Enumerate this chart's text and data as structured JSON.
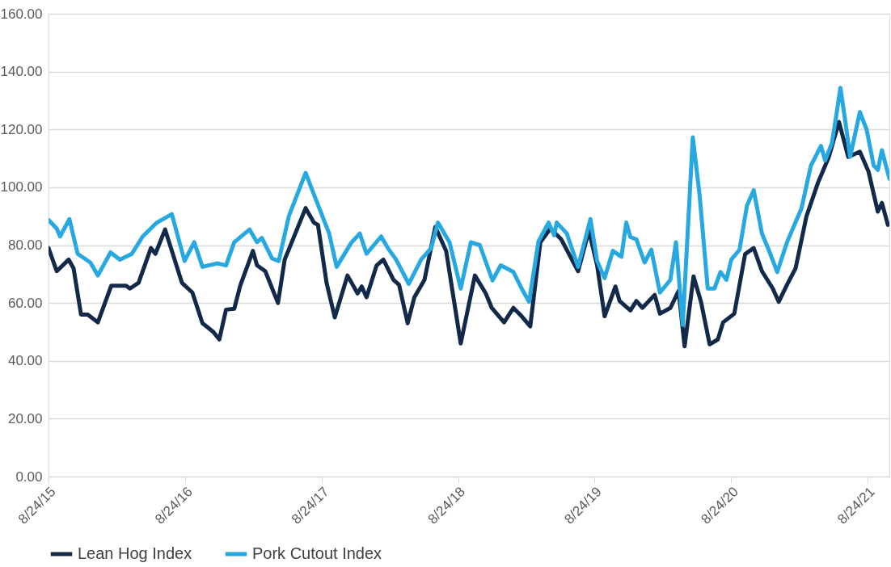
{
  "chart_data": {
    "type": "line",
    "xlim": [
      "2015-08-24",
      "2021-10-21"
    ],
    "ylim": [
      0,
      160
    ],
    "xticks": [
      {
        "value": "2015-08-24",
        "label": "8/24/15"
      },
      {
        "value": "2016-08-24",
        "label": "8/24/16"
      },
      {
        "value": "2017-08-24",
        "label": "8/24/17"
      },
      {
        "value": "2018-08-24",
        "label": "8/24/18"
      },
      {
        "value": "2019-08-24",
        "label": "8/24/19"
      },
      {
        "value": "2020-08-24",
        "label": "8/24/20"
      },
      {
        "value": "2021-08-24",
        "label": "8/24/21"
      }
    ],
    "yticks": [
      {
        "value": 0,
        "label": "0.00"
      },
      {
        "value": 20,
        "label": "20.00"
      },
      {
        "value": 40,
        "label": "40.00"
      },
      {
        "value": 60,
        "label": "60.00"
      },
      {
        "value": 80,
        "label": "80.00"
      },
      {
        "value": 100,
        "label": "100.00"
      },
      {
        "value": 120,
        "label": "120.00"
      },
      {
        "value": 140,
        "label": "140.00"
      },
      {
        "value": 160,
        "label": "160.00"
      }
    ],
    "grid": "y",
    "legend": "bottom",
    "marker": "none",
    "line_style": "solid",
    "series": [
      {
        "name": "Lean Hog Index",
        "color": "#12294a",
        "x": [
          "2015-08-24",
          "2015-09-15",
          "2015-10-17",
          "2015-10-30",
          "2015-11-19",
          "2015-12-07",
          "2016-01-03",
          "2016-02-08",
          "2016-03-18",
          "2016-03-29",
          "2016-04-21",
          "2016-05-24",
          "2016-06-05",
          "2016-07-01",
          "2016-08-15",
          "2016-09-12",
          "2016-10-09",
          "2016-11-07",
          "2016-11-23",
          "2016-12-11",
          "2017-01-02",
          "2017-01-18",
          "2017-02-21",
          "2017-03-04",
          "2017-03-26",
          "2017-04-29",
          "2017-05-17",
          "2017-07-12",
          "2017-08-03",
          "2017-08-14",
          "2017-09-06",
          "2017-09-28",
          "2017-11-01",
          "2017-11-28",
          "2017-12-09",
          "2017-12-22",
          "2018-01-18",
          "2018-02-05",
          "2018-03-04",
          "2018-03-19",
          "2018-04-11",
          "2018-04-29",
          "2018-05-26",
          "2018-06-24",
          "2018-07-23",
          "2018-08-31",
          "2018-10-08",
          "2018-11-06",
          "2018-11-22",
          "2018-12-25",
          "2019-01-19",
          "2019-02-10",
          "2019-03-05",
          "2019-04-01",
          "2019-04-28",
          "2019-05-27",
          "2019-07-11",
          "2019-08-09",
          "2019-08-31",
          "2019-09-20",
          "2019-10-19",
          "2019-10-30",
          "2019-11-28",
          "2019-12-14",
          "2019-12-30",
          "2020-02-01",
          "2020-02-15",
          "2020-03-14",
          "2020-04-05",
          "2020-04-21",
          "2020-05-15",
          "2020-06-04",
          "2020-06-27",
          "2020-07-19",
          "2020-08-02",
          "2020-09-01",
          "2020-09-30",
          "2020-10-23",
          "2020-11-14",
          "2020-12-13",
          "2020-12-29",
          "2021-01-20",
          "2021-02-12",
          "2021-03-13",
          "2021-04-13",
          "2021-05-12",
          "2021-06-08",
          "2021-07-03",
          "2021-08-03",
          "2021-08-26",
          "2021-09-20",
          "2021-10-01",
          "2021-10-17"
        ],
        "values": [
          79,
          71,
          75,
          72,
          56,
          56,
          53.3,
          66,
          66,
          65,
          67,
          79,
          77,
          85.4,
          67,
          63.6,
          53,
          50,
          47.4,
          57.7,
          58,
          66,
          78,
          73,
          71,
          60,
          75,
          92.8,
          87.8,
          87,
          67,
          55,
          69.5,
          63.3,
          65.7,
          62,
          73,
          75,
          68,
          66.3,
          53,
          62,
          68,
          86.3,
          78,
          46,
          69.5,
          63.3,
          58.3,
          53.3,
          58.3,
          55.4,
          51.9,
          81,
          85.7,
          82,
          71,
          85,
          73,
          55.4,
          65.7,
          60.7,
          57.4,
          60.7,
          58.3,
          62.8,
          56.3,
          58.3,
          64.2,
          45,
          69.2,
          60.4,
          45.7,
          47.4,
          53.3,
          56.3,
          76.9,
          79,
          71,
          65,
          60.4,
          66.3,
          72,
          89.9,
          101.6,
          110.5,
          122.6,
          110.5,
          112.3,
          105.5,
          91.6,
          94.6,
          87
        ]
      },
      {
        "name": "Pork Cutout Index",
        "color": "#27a8e0",
        "x": [
          "2015-08-24",
          "2015-09-15",
          "2015-09-24",
          "2015-10-19",
          "2015-11-10",
          "2015-12-14",
          "2016-01-03",
          "2016-02-06",
          "2016-03-02",
          "2016-04-03",
          "2016-05-02",
          "2016-06-09",
          "2016-07-19",
          "2016-08-22",
          "2016-09-17",
          "2016-10-09",
          "2016-11-19",
          "2016-12-11",
          "2017-01-02",
          "2017-02-12",
          "2017-03-04",
          "2017-03-17",
          "2017-04-13",
          "2017-05-01",
          "2017-05-28",
          "2017-07-12",
          "2017-08-06",
          "2017-09-13",
          "2017-10-03",
          "2017-11-12",
          "2017-12-04",
          "2017-12-22",
          "2018-01-30",
          "2018-02-17",
          "2018-03-11",
          "2018-04-14",
          "2018-05-17",
          "2018-06-13",
          "2018-07-01",
          "2018-08-01",
          "2018-08-31",
          "2018-09-27",
          "2018-10-21",
          "2018-11-24",
          "2018-12-16",
          "2019-01-19",
          "2019-02-10",
          "2019-03-02",
          "2019-03-27",
          "2019-04-23",
          "2019-05-08",
          "2019-05-15",
          "2019-06-11",
          "2019-07-11",
          "2019-08-13",
          "2019-08-31",
          "2019-09-20",
          "2019-10-12",
          "2019-11-04",
          "2019-11-17",
          "2019-11-28",
          "2019-12-14",
          "2020-01-05",
          "2020-01-23",
          "2020-02-15",
          "2020-03-14",
          "2020-03-29",
          "2020-04-16",
          "2020-05-13",
          "2020-05-31",
          "2020-06-22",
          "2020-07-10",
          "2020-07-26",
          "2020-08-11",
          "2020-08-24",
          "2020-09-15",
          "2020-10-05",
          "2020-10-23",
          "2020-11-14",
          "2020-12-02",
          "2020-12-25",
          "2021-01-20",
          "2021-02-28",
          "2021-03-25",
          "2021-04-21",
          "2021-05-02",
          "2021-05-20",
          "2021-05-31",
          "2021-06-12",
          "2021-06-27",
          "2021-07-08",
          "2021-08-03",
          "2021-08-21",
          "2021-09-09",
          "2021-09-20",
          "2021-10-01",
          "2021-10-21"
        ],
        "values": [
          88.7,
          85.7,
          83,
          89,
          77,
          74,
          69.5,
          77.5,
          75,
          77,
          83,
          87.8,
          90.7,
          74.5,
          81,
          72.5,
          73.7,
          73,
          81,
          85.4,
          81,
          82.5,
          75.4,
          74.5,
          90,
          105,
          96.6,
          84,
          72.5,
          81,
          84,
          77,
          83,
          79,
          75,
          66.6,
          75,
          79,
          87.8,
          81,
          65,
          81,
          80,
          67.8,
          73,
          70.7,
          65,
          60.4,
          81.3,
          87.8,
          83.4,
          87.8,
          84,
          72.5,
          89,
          74.5,
          68.6,
          78,
          76,
          87.8,
          82.8,
          82,
          74,
          78.4,
          63.6,
          68,
          81,
          52.4,
          117.3,
          97.5,
          65,
          65,
          70.7,
          68,
          75,
          78.4,
          93.7,
          99,
          84,
          78.4,
          70.7,
          81,
          92.8,
          107.5,
          114.3,
          109.3,
          115.2,
          124,
          134.4,
          121,
          110.5,
          126,
          120,
          107.5,
          106,
          112.8,
          103
        ]
      }
    ]
  }
}
